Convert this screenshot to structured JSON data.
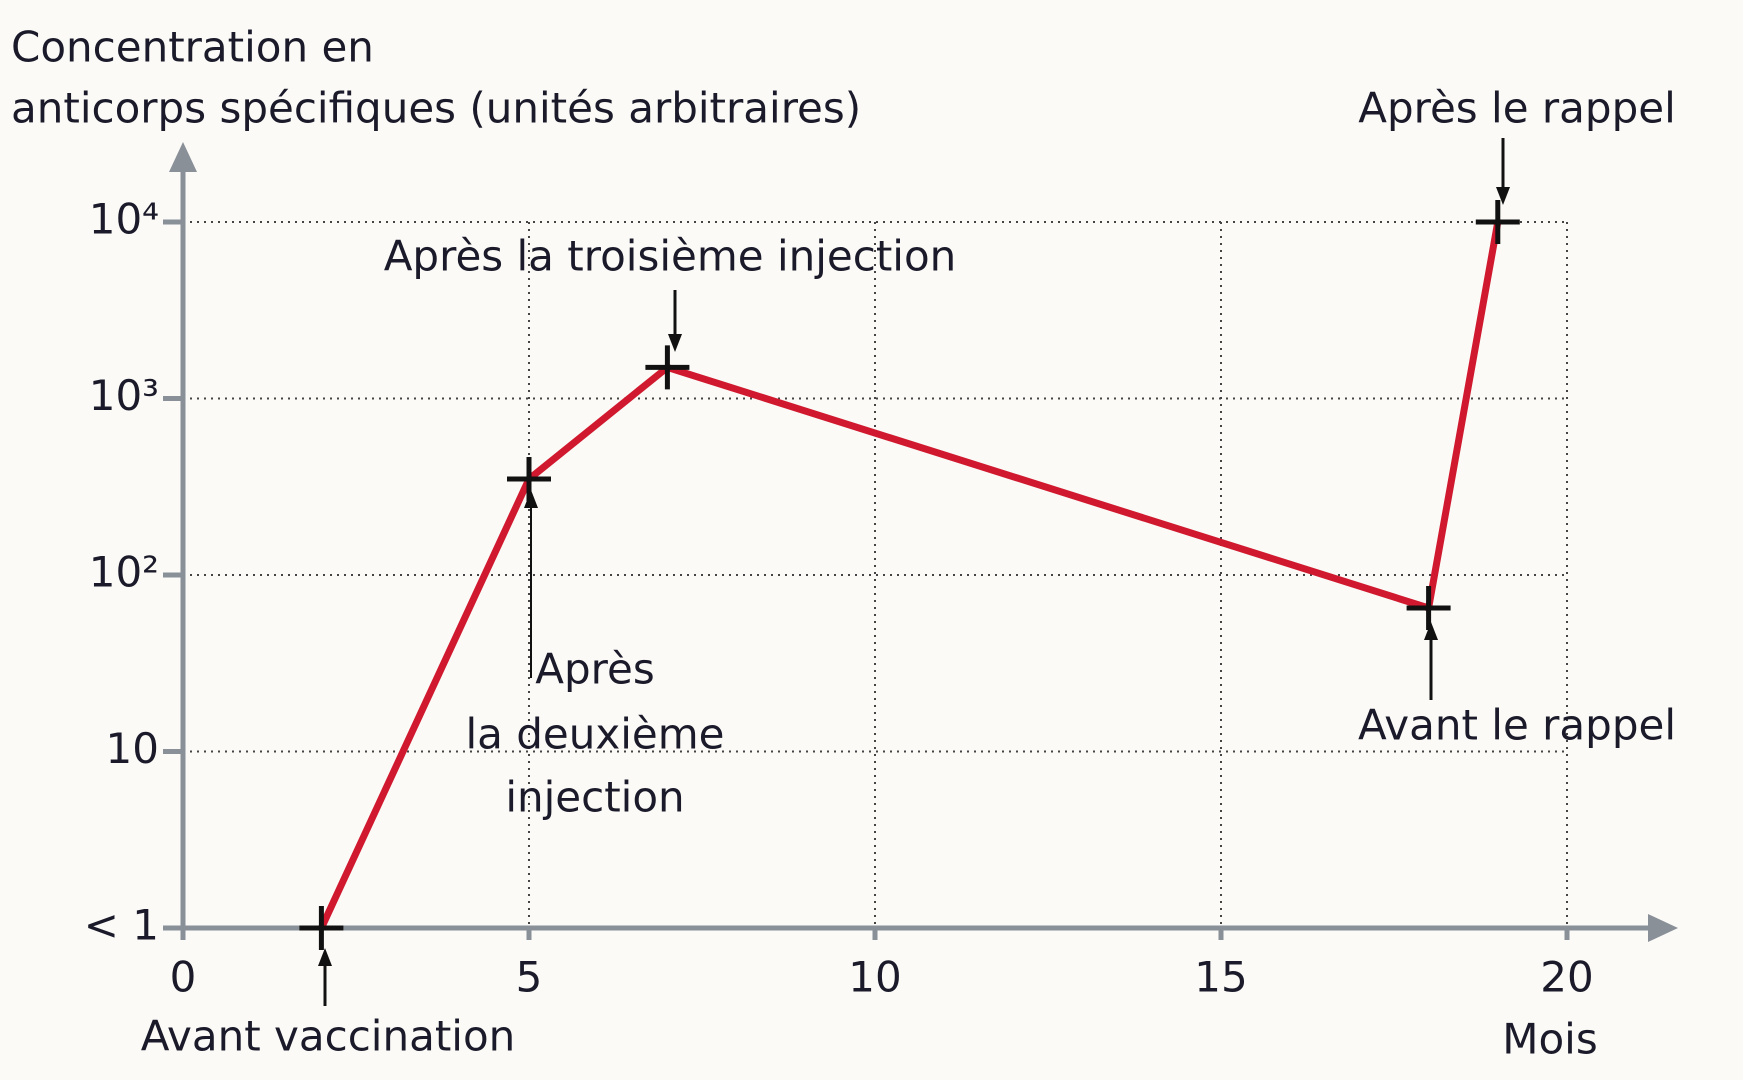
{
  "chart_data": {
    "type": "line",
    "ylabel": [
      "Concentration en",
      "anticorps spécifiques (unités arbitraires)"
    ],
    "xlabel": "Mois",
    "x": [
      2,
      5,
      7,
      18,
      19
    ],
    "values": [
      1,
      350,
      1500,
      65,
      10000
    ],
    "color": "#d0192f",
    "xlim": [
      0,
      20
    ],
    "xticks": [
      0,
      5,
      10,
      15,
      20
    ],
    "ylim": [
      1,
      10000
    ],
    "log_y": true,
    "yticks": [
      {
        "value": 1,
        "label": "< 1"
      },
      10,
      {
        "value": 100,
        "label": "10²"
      },
      {
        "value": 1000,
        "label": "10³"
      },
      {
        "value": 10000,
        "label": "10⁴"
      }
    ],
    "grid": true,
    "annotations": [
      [
        "Avant vaccination"
      ],
      [
        "Après",
        "la deuxième",
        "injection"
      ],
      [
        "Après la troisième injection"
      ],
      [
        "Avant le rappel"
      ],
      [
        "Après le rappel"
      ]
    ]
  }
}
